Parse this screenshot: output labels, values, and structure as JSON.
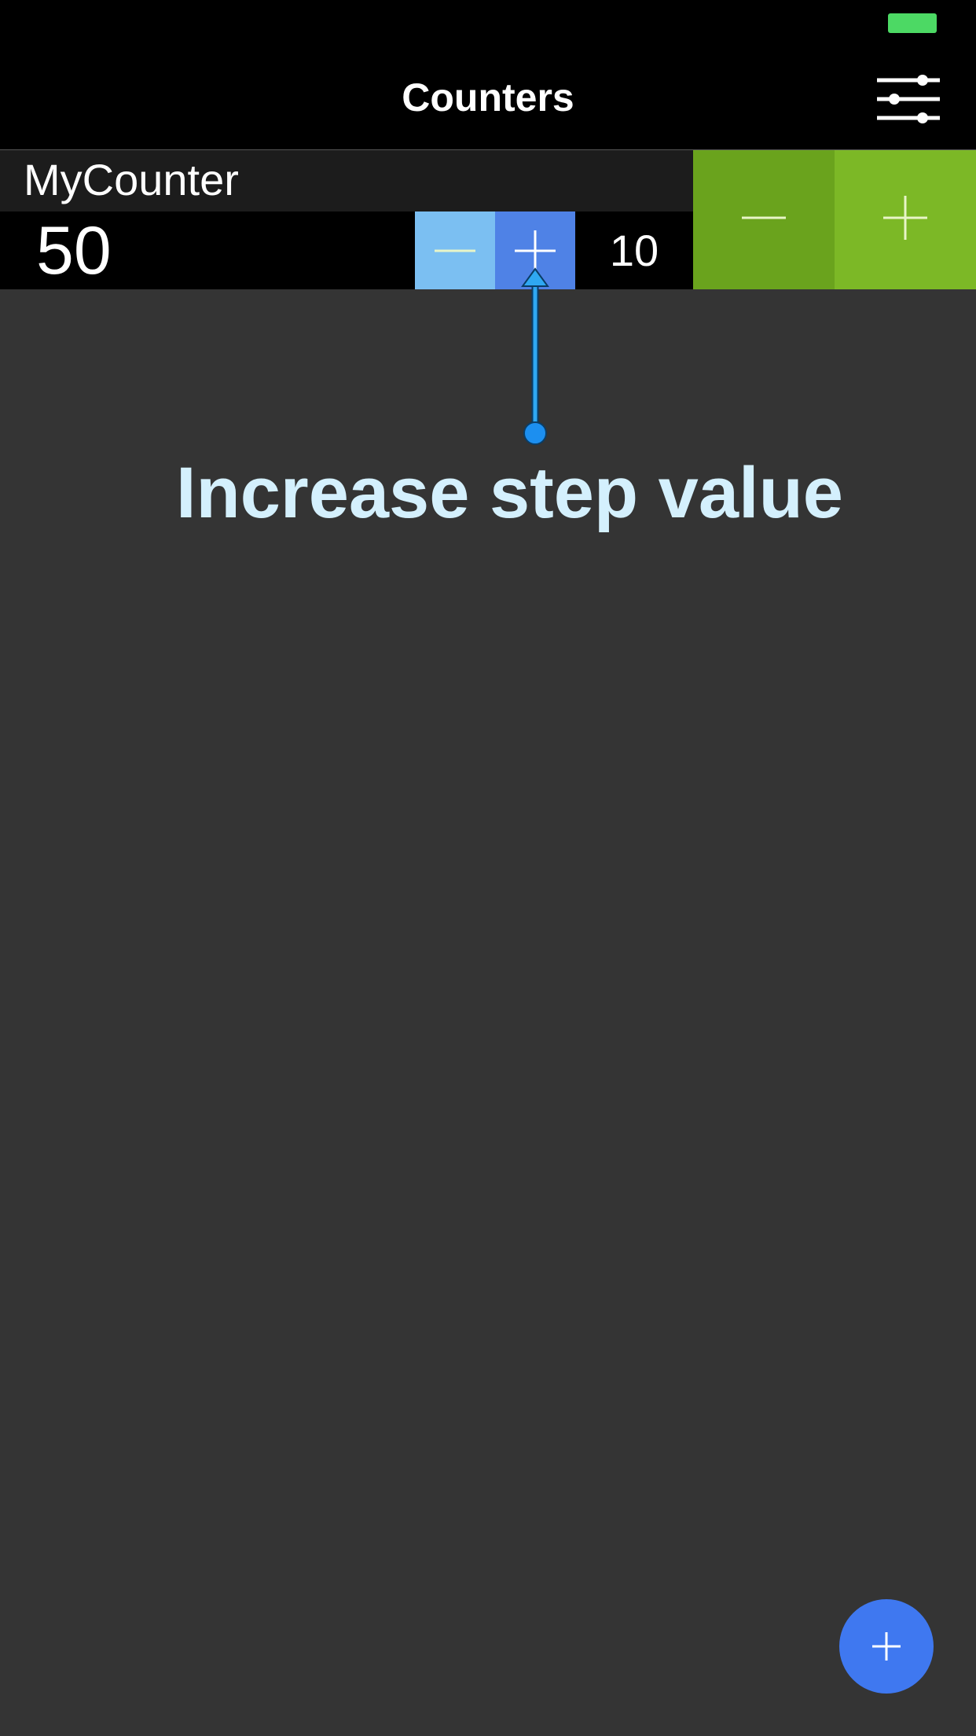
{
  "header": {
    "title": "Counters",
    "settings_icon": "sliders-icon"
  },
  "status_bar": {
    "battery_color": "#4cd964"
  },
  "counter": {
    "name": "MyCounter",
    "value": "50",
    "step_value": "10",
    "step_decrement_icon": "minus-icon",
    "step_increment_icon": "plus-icon",
    "decrement_icon": "minus-icon",
    "increment_icon": "plus-icon"
  },
  "tutorial": {
    "hint_text": "Increase step value",
    "color": "#d4f0fd"
  },
  "fab": {
    "icon": "plus-icon",
    "color": "#3f78f0"
  },
  "colors": {
    "header_bg": "#000000",
    "page_bg": "#343434",
    "step_dec_bg": "#7bbff2",
    "step_inc_bg": "#4f82e6",
    "big_dec_bg": "#6aa31d",
    "big_inc_bg": "#7cb826"
  }
}
